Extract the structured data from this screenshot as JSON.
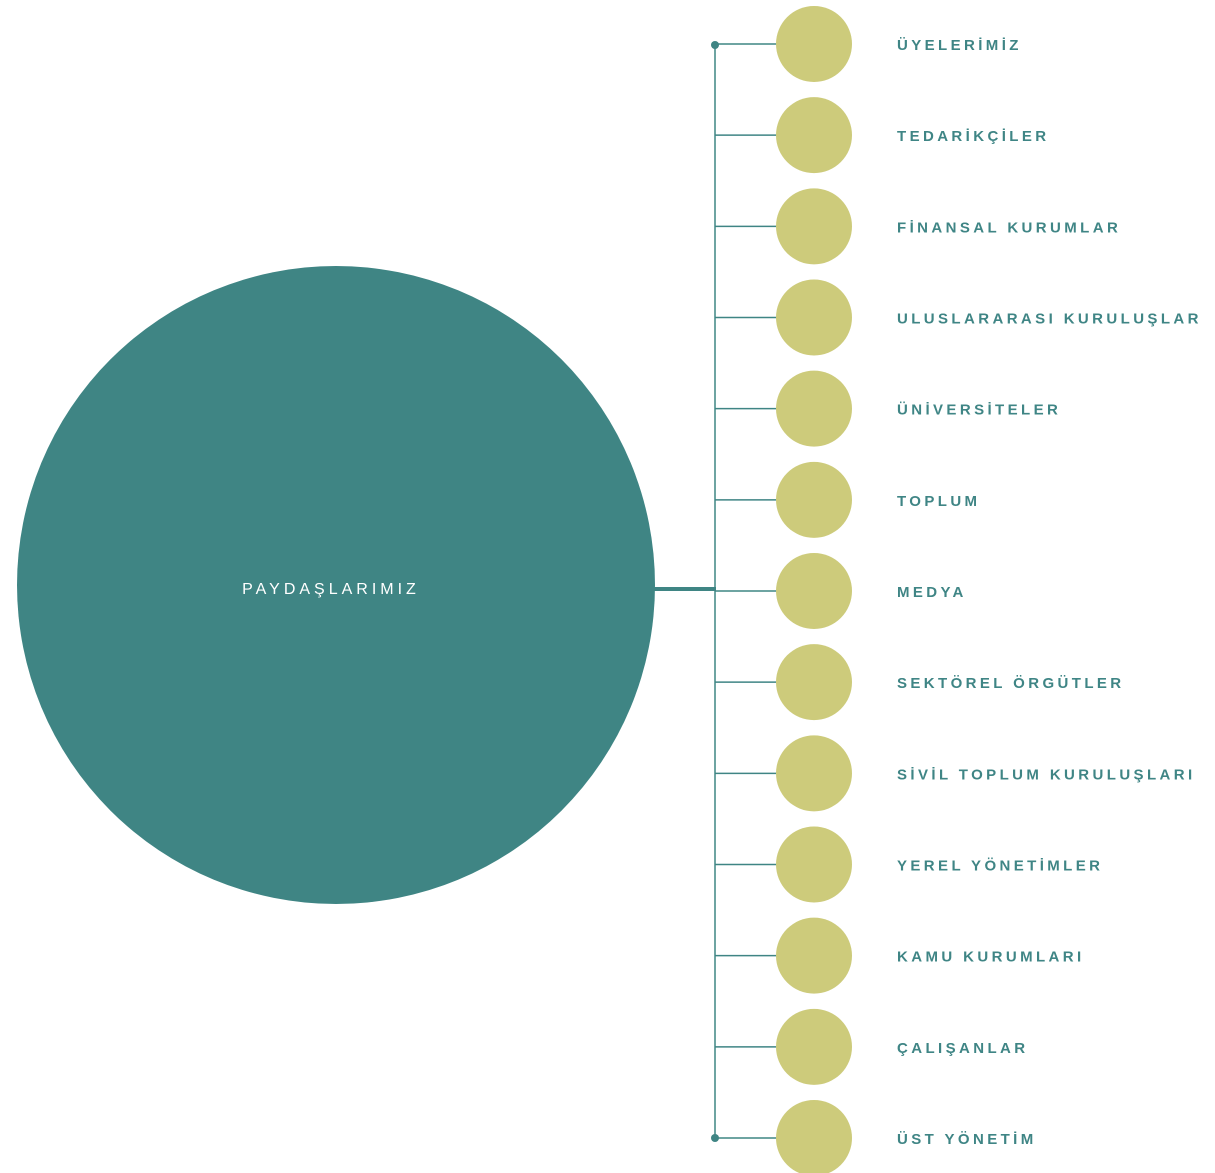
{
  "center": {
    "label": "PAYDAŞLARIMIZ"
  },
  "nodes": [
    {
      "label": "ÜYELERİMİZ"
    },
    {
      "label": "TEDARİKÇİLER"
    },
    {
      "label": "FİNANSAL KURUMLAR"
    },
    {
      "label": "ULUSLARARASI KURULUŞLAR"
    },
    {
      "label": "ÜNİVERSİTELER"
    },
    {
      "label": "TOPLUM"
    },
    {
      "label": "MEDYA"
    },
    {
      "label": "SEKTÖREL ÖRGÜTLER"
    },
    {
      "label": "SİVİL TOPLUM KURULUŞLARI"
    },
    {
      "label": "YEREL YÖNETİMLER"
    },
    {
      "label": "KAMU KURUMLARI"
    },
    {
      "label": "ÇALIŞANLAR"
    },
    {
      "label": "ÜST YÖNETİM"
    }
  ]
}
